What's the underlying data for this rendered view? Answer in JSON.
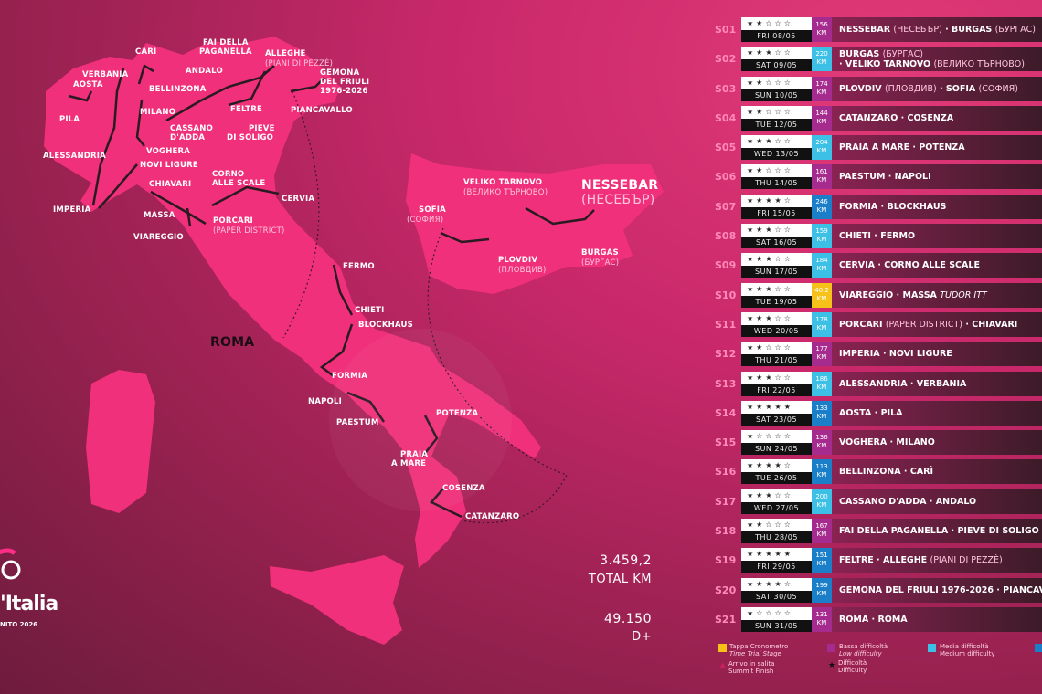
{
  "colors": {
    "background": "#c8286a",
    "land": "#f0307a",
    "low": "#a62b8e",
    "medium": "#3cc0e6",
    "high": "#1a7fc8",
    "timetrial": "#f6c21a"
  },
  "map": {
    "italy": [
      "CARÌ",
      "FAI DELLA",
      "PAGANELLA",
      "ALLEGHE",
      "(PIANI DI PEZZÈ)",
      "GEMONA",
      "DEL FRIULI",
      "1976-2026",
      "VERBANIA",
      "ANDALO",
      "AOSTA",
      "BELLINZONA",
      "PIANCAVALLO",
      "FELTRE",
      "MILANO",
      "PILA",
      "CASSANO",
      "D'ADDA",
      "PIEVE",
      "DI SOLIGO",
      "VOGHERA",
      "ALESSANDRIA",
      "NOVI LIGURE",
      "CORNO",
      "ALLE SCALE",
      "CHIAVARI",
      "CERVIA",
      "IMPERIA",
      "MASSA",
      "PORCARI",
      "(PAPER DISTRICT)",
      "VIAREGGIO",
      "FERMO",
      "CHIETI",
      "BLOCKHAUS",
      "ROMA",
      "FORMIA",
      "NAPOLI",
      "PAESTUM",
      "POTENZA",
      "PRAIA",
      "A MARE",
      "COSENZA",
      "CATANZARO"
    ],
    "bulgaria": [
      "VELIKO TARNOVO",
      "(ВЕЛИКО ТЪРНОВО)",
      "SOFIA",
      "(СОФИЯ)",
      "NESSEBAR",
      "(НЕСЕБЪР)",
      "PLOVDIV",
      "(ПЛОВДИВ)",
      "BURGAS",
      "(БУРГАС)"
    ]
  },
  "totals": {
    "km": "3.459,2",
    "km_label": "TOTAL KM",
    "elevation": "49.150",
    "elevation_label": "D+"
  },
  "logo": {
    "text": "'Italia",
    "sub": "NITO 2026"
  },
  "stages": [
    {
      "id": "S01",
      "stars": 2,
      "date": "FRI 08/05",
      "km": "156",
      "difficulty": "low",
      "title": "NESSEBAR",
      "title_sub": "(НЕСЕБЪР)",
      "title2": "BURGAS",
      "title2_sub": "(БУРГАС)"
    },
    {
      "id": "S02",
      "stars": 3,
      "date": "SAT 09/05",
      "km": "220",
      "difficulty": "medium",
      "title": "BURGAS",
      "title_sub": "(БУРГАС)",
      "title2": "VELIKO TARNOVO",
      "title2_sub": "(ВЕЛИКО ТЪРНОВО)",
      "twoline": true
    },
    {
      "id": "S03",
      "stars": 2,
      "date": "SUN 10/05",
      "km": "174",
      "difficulty": "low",
      "title": "PLOVDIV",
      "title_sub": "(ПЛОВДИВ)",
      "title2": "SOFIA",
      "title2_sub": "(СОФИЯ)"
    },
    {
      "id": "S04",
      "stars": 2,
      "date": "TUE 12/05",
      "km": "144",
      "difficulty": "low",
      "title": "CATANZARO",
      "title2": "COSENZA"
    },
    {
      "id": "S05",
      "stars": 3,
      "date": "WED 13/05",
      "km": "204",
      "difficulty": "medium",
      "title": "PRAIA A MARE",
      "title2": "POTENZA"
    },
    {
      "id": "S06",
      "stars": 2,
      "date": "THU 14/05",
      "km": "161",
      "difficulty": "low",
      "title": "PAESTUM",
      "title2": "NAPOLI"
    },
    {
      "id": "S07",
      "stars": 4,
      "date": "FRI 15/05",
      "km": "246",
      "difficulty": "high",
      "title": "FORMIA",
      "title2": "BLOCKHAUS"
    },
    {
      "id": "S08",
      "stars": 3,
      "date": "SAT 16/05",
      "km": "159",
      "difficulty": "medium",
      "title": "CHIETI",
      "title2": "FERMO"
    },
    {
      "id": "S09",
      "stars": 3,
      "date": "SUN 17/05",
      "km": "184",
      "difficulty": "medium",
      "title": "CERVIA",
      "title2": "CORNO ALLE SCALE"
    },
    {
      "id": "S10",
      "stars": 3,
      "date": "TUE 19/05",
      "km": "40.2",
      "difficulty": "timetrial",
      "title": "VIAREGGIO",
      "title2": "MASSA",
      "title2_italic": "TUDOR ITT"
    },
    {
      "id": "S11",
      "stars": 3,
      "date": "WED 20/05",
      "km": "178",
      "difficulty": "medium",
      "title": "PORCARI",
      "title_sub": "(PAPER DISTRICT)",
      "title2": "CHIAVARI"
    },
    {
      "id": "S12",
      "stars": 2,
      "date": "THU 21/05",
      "km": "177",
      "difficulty": "low",
      "title": "IMPERIA",
      "title2": "NOVI LIGURE"
    },
    {
      "id": "S13",
      "stars": 3,
      "date": "FRI 22/05",
      "km": "186",
      "difficulty": "medium",
      "title": "ALESSANDRIA",
      "title2": "VERBANIA"
    },
    {
      "id": "S14",
      "stars": 5,
      "date": "SAT 23/05",
      "km": "133",
      "difficulty": "high",
      "title": "AOSTA",
      "title2": "PILA"
    },
    {
      "id": "S15",
      "stars": 1,
      "date": "SUN 24/05",
      "km": "136",
      "difficulty": "low",
      "title": "VOGHERA",
      "title2": "MILANO"
    },
    {
      "id": "S16",
      "stars": 4,
      "date": "TUE 26/05",
      "km": "113",
      "difficulty": "high",
      "title": "BELLINZONA",
      "title2": "CARÌ"
    },
    {
      "id": "S17",
      "stars": 3,
      "date": "WED 27/05",
      "km": "200",
      "difficulty": "medium",
      "title": "CASSANO D'ADDA",
      "title2": "ANDALO"
    },
    {
      "id": "S18",
      "stars": 2,
      "date": "THU 28/05",
      "km": "167",
      "difficulty": "low",
      "title": "FAI DELLA PAGANELLA",
      "title2": "PIEVE DI SOLIGO"
    },
    {
      "id": "S19",
      "stars": 5,
      "date": "FRI 29/05",
      "km": "151",
      "difficulty": "high",
      "title": "FELTRE",
      "title2": "ALLEGHE",
      "title2_sub": "(PIANI DI PEZZÈ)"
    },
    {
      "id": "S20",
      "stars": 4,
      "date": "SAT 30/05",
      "km": "199",
      "difficulty": "high",
      "title": "GEMONA DEL FRIULI 1976-2026",
      "title2": "PIANCAVALLO"
    },
    {
      "id": "S21",
      "stars": 1,
      "date": "SUN 31/05",
      "km": "131",
      "difficulty": "low",
      "title": "ROMA",
      "title2": "ROMA"
    }
  ],
  "km_unit": "KM",
  "legend": {
    "timetrial": [
      "Tappa Cronometro",
      "Time Trial Stage"
    ],
    "low": [
      "Bassa difficoltà",
      "Low difficulty"
    ],
    "medium": [
      "Media difficoltà",
      "Medium difficulty"
    ],
    "summit": [
      "Arrivo in salita",
      "Summit Finish"
    ],
    "difficulty": [
      "Difficoltà",
      "Difficulty"
    ]
  }
}
